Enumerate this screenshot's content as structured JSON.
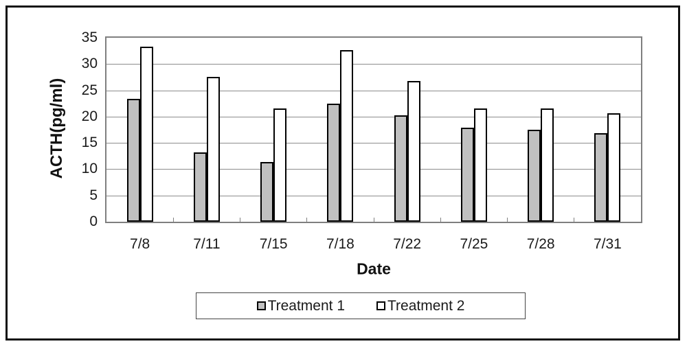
{
  "chart_data": {
    "type": "bar",
    "title": "",
    "categories": [
      "7/8",
      "7/11",
      "7/15",
      "7/18",
      "7/22",
      "7/25",
      "7/28",
      "7/31"
    ],
    "series": [
      {
        "name": "Treatment 1",
        "color": "#c0c0c0",
        "values": [
          23.4,
          13.2,
          11.4,
          22.5,
          20.2,
          17.9,
          17.5,
          16.9
        ]
      },
      {
        "name": "Treatment 2",
        "color": "#ffffff",
        "values": [
          33.3,
          27.5,
          21.5,
          32.6,
          26.8,
          21.5,
          21.6,
          20.6
        ]
      }
    ],
    "xlabel": "Date",
    "ylabel": "ACTH(pg/ml)",
    "ylim": [
      0,
      35
    ],
    "yticks": [
      0,
      5,
      10,
      15,
      20,
      25,
      30,
      35
    ],
    "grid": true,
    "legend_position": "bottom-boxed",
    "colors": {
      "bar_outline": "#000000",
      "gridline": "#8c8c8c",
      "plot_frame": "#7f7f7f",
      "outer_frame": "#111111",
      "text": "#1a1a1a"
    }
  }
}
